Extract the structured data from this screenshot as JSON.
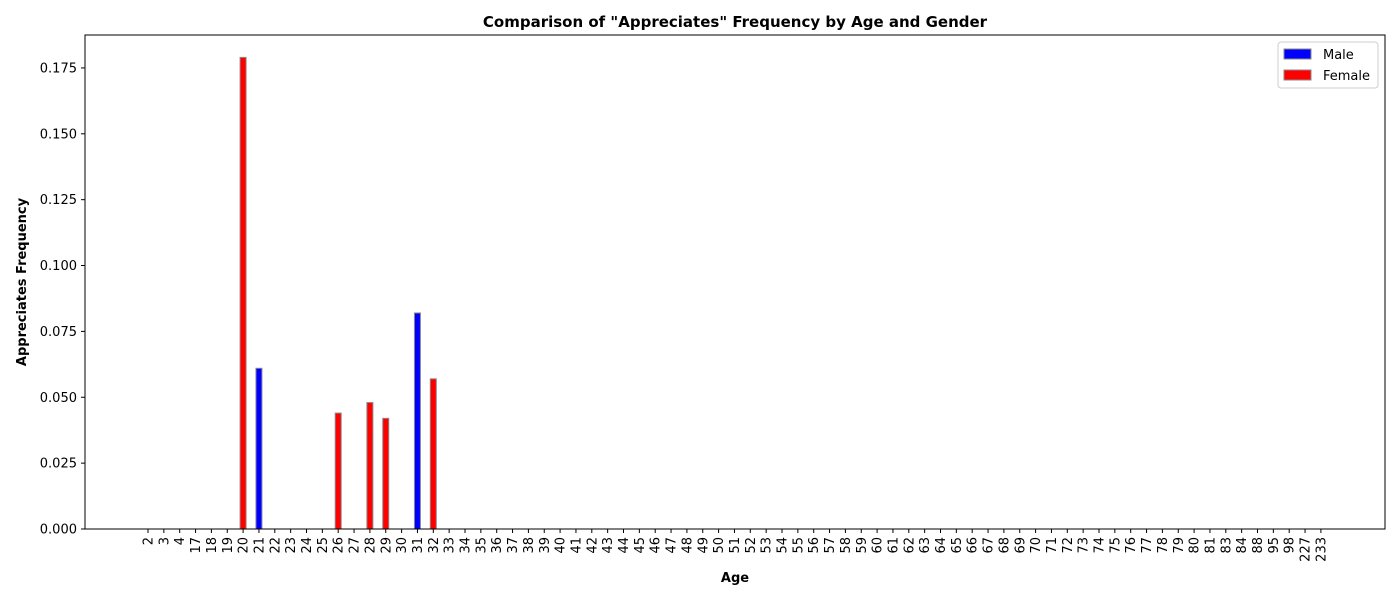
{
  "chart_data": {
    "type": "bar",
    "title": "Comparison of \"Appreciates\" Frequency by Age and Gender",
    "xlabel": "Age",
    "ylabel": "Appreciates Frequency",
    "ylim": [
      0,
      0.1875
    ],
    "yticks": [
      "0.000",
      "0.025",
      "0.050",
      "0.075",
      "0.100",
      "0.125",
      "0.150",
      "0.175"
    ],
    "grid": false,
    "legend_position": "top-right",
    "categories": [
      "2",
      "3",
      "4",
      "17",
      "18",
      "19",
      "20",
      "21",
      "22",
      "23",
      "24",
      "25",
      "26",
      "27",
      "28",
      "29",
      "30",
      "31",
      "32",
      "33",
      "34",
      "35",
      "36",
      "37",
      "38",
      "39",
      "40",
      "41",
      "42",
      "43",
      "44",
      "45",
      "46",
      "47",
      "48",
      "49",
      "50",
      "51",
      "52",
      "53",
      "54",
      "55",
      "56",
      "57",
      "58",
      "59",
      "60",
      "61",
      "62",
      "63",
      "64",
      "65",
      "66",
      "67",
      "68",
      "69",
      "70",
      "71",
      "72",
      "73",
      "74",
      "75",
      "76",
      "77",
      "78",
      "79",
      "80",
      "81",
      "83",
      "84",
      "88",
      "95",
      "98",
      "227",
      "233"
    ],
    "series": [
      {
        "name": "Male",
        "color": "#0000ff",
        "points": [
          {
            "category": "21",
            "value": 0.061
          },
          {
            "category": "31",
            "value": 0.082
          }
        ]
      },
      {
        "name": "Female",
        "color": "#ff0000",
        "points": [
          {
            "category": "20",
            "value": 0.179
          },
          {
            "category": "26",
            "value": 0.044
          },
          {
            "category": "28",
            "value": 0.048
          },
          {
            "category": "29",
            "value": 0.042
          },
          {
            "category": "32",
            "value": 0.057
          }
        ]
      }
    ]
  }
}
